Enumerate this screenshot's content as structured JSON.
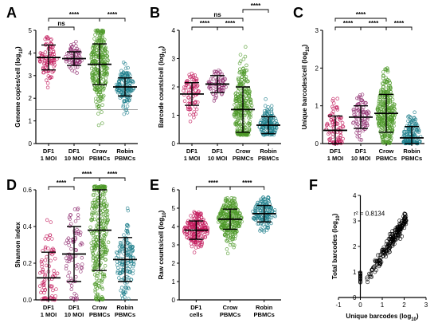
{
  "colors": {
    "pink": "#c2185b",
    "purple": "#8e2a6e",
    "green": "#4f9a2a",
    "teal": "#1f7f8c",
    "black": "#000000"
  },
  "chart_data": [
    {
      "panel": "A",
      "type": "scatter",
      "ylabel": "Genome copies/cell (log10)",
      "ylim": [
        0,
        5
      ],
      "yticks": [
        "0",
        "1",
        "2",
        "3",
        "4",
        "5"
      ],
      "baseline": 1.5,
      "categories": [
        {
          "line1": "DF1",
          "line2": "1 MOI",
          "color": "pink",
          "mean": 3.8,
          "sd": 0.55,
          "n": 90,
          "lo": 1.5,
          "hi": 4.7
        },
        {
          "line1": "DF1",
          "line2": "10 MOI",
          "color": "purple",
          "mean": 3.75,
          "sd": 0.3,
          "n": 70,
          "lo": 2.8,
          "hi": 4.5
        },
        {
          "line1": "Crow",
          "line2": "PBMCs",
          "color": "green",
          "mean": 3.5,
          "sd": 0.9,
          "n": 300,
          "lo": 0.8,
          "hi": 5.0
        },
        {
          "line1": "Robin",
          "line2": "PBMCs",
          "color": "teal",
          "mean": 2.5,
          "sd": 0.4,
          "n": 150,
          "lo": 1.3,
          "hi": 3.6
        }
      ],
      "comparisons": [
        {
          "a": 0,
          "b": 1,
          "label": "ns",
          "level": 0
        },
        {
          "a": 0,
          "b": 2,
          "label": "****",
          "level": 1
        },
        {
          "a": 2,
          "b": 3,
          "label": "****",
          "level": 1
        }
      ]
    },
    {
      "panel": "B",
      "type": "scatter",
      "ylabel": "Barcode counts/cell (log10)",
      "ylim": [
        0,
        4
      ],
      "yticks": [
        "0",
        "1",
        "2",
        "3",
        "4"
      ],
      "categories": [
        {
          "line1": "DF1",
          "line2": "1 MOI",
          "color": "pink",
          "mean": 1.75,
          "sd": 0.4,
          "n": 80,
          "lo": 0.3,
          "hi": 2.5
        },
        {
          "line1": "DF1",
          "line2": "10 MOI",
          "color": "purple",
          "mean": 2.1,
          "sd": 0.3,
          "n": 70,
          "lo": 1.3,
          "hi": 2.6
        },
        {
          "line1": "Crow",
          "line2": "PBMCs",
          "color": "green",
          "mean": 1.2,
          "sd": 0.8,
          "n": 320,
          "lo": 0.3,
          "hi": 3.6
        },
        {
          "line1": "Robin",
          "line2": "PBMCs",
          "color": "teal",
          "mean": 0.65,
          "sd": 0.3,
          "n": 150,
          "lo": 0.3,
          "hi": 1.6
        }
      ],
      "comparisons": [
        {
          "a": 0,
          "b": 1,
          "label": "****",
          "level": 0
        },
        {
          "a": 1,
          "b": 2,
          "label": "****",
          "level": 0
        },
        {
          "a": 0,
          "b": 2,
          "label": "ns",
          "level": 1
        },
        {
          "a": 2,
          "b": 3,
          "label": "****",
          "level": 2
        }
      ]
    },
    {
      "panel": "C",
      "type": "scatter",
      "ylabel": "Unique barcodes/cell (log10)",
      "ylim": [
        0,
        3
      ],
      "yticks": [
        "0",
        "1",
        "2",
        "3"
      ],
      "categories": [
        {
          "line1": "DF1",
          "line2": "1 MOI",
          "color": "pink",
          "mean": 0.35,
          "sd": 0.38,
          "n": 90,
          "lo": 0,
          "hi": 1.2
        },
        {
          "line1": "DF1",
          "line2": "10 MOI",
          "color": "purple",
          "mean": 0.7,
          "sd": 0.3,
          "n": 80,
          "lo": 0,
          "hi": 1.3
        },
        {
          "line1": "Crow",
          "line2": "PBMCs",
          "color": "green",
          "mean": 0.8,
          "sd": 0.5,
          "n": 320,
          "lo": 0,
          "hi": 2.0
        },
        {
          "line1": "Robin",
          "line2": "PBMCs",
          "color": "teal",
          "mean": 0.15,
          "sd": 0.3,
          "n": 150,
          "lo": 0,
          "hi": 1.2
        }
      ],
      "comparisons": [
        {
          "a": 0,
          "b": 1,
          "label": "****",
          "level": 0
        },
        {
          "a": 1,
          "b": 2,
          "label": "****",
          "level": 0
        },
        {
          "a": 0,
          "b": 2,
          "label": "****",
          "level": 1
        },
        {
          "a": 2,
          "b": 3,
          "label": "****",
          "level": 0
        }
      ]
    },
    {
      "panel": "D",
      "type": "scatter",
      "ylabel": "Shannon index",
      "ylim": [
        0,
        0.6
      ],
      "yticks": [
        "0.0",
        "0.2",
        "0.4",
        "0.6"
      ],
      "categories": [
        {
          "line1": "DF1",
          "line2": "1 MOI",
          "color": "pink",
          "mean": 0.12,
          "sd": 0.14,
          "n": 80,
          "lo": 0,
          "hi": 0.45
        },
        {
          "line1": "DF1",
          "line2": "10 MOI",
          "color": "purple",
          "mean": 0.25,
          "sd": 0.15,
          "n": 80,
          "lo": 0,
          "hi": 0.5
        },
        {
          "line1": "Crow",
          "line2": "PBMCs",
          "color": "green",
          "mean": 0.38,
          "sd": 0.22,
          "n": 320,
          "lo": 0,
          "hi": 0.62
        },
        {
          "line1": "Robin",
          "line2": "PBMCs",
          "color": "teal",
          "mean": 0.22,
          "sd": 0.12,
          "n": 150,
          "lo": 0,
          "hi": 0.5
        }
      ],
      "comparisons": [
        {
          "a": 0,
          "b": 1,
          "label": "****",
          "level": 0
        },
        {
          "a": 1,
          "b": 2,
          "label": "****",
          "level": 1
        },
        {
          "a": 2,
          "b": 3,
          "label": "****",
          "level": 1
        }
      ]
    },
    {
      "panel": "E",
      "type": "scatter",
      "ylabel": "Raw counts/cell (log10)",
      "ylim": [
        0,
        6
      ],
      "yticks": [
        "0",
        "1",
        "2",
        "3",
        "4",
        "5",
        "6"
      ],
      "categories": [
        {
          "line1": "DF1",
          "line2": "cells",
          "color": "pink",
          "mean": 3.8,
          "sd": 0.5,
          "n": 200,
          "lo": 0.5,
          "hi": 4.8
        },
        {
          "line1": "Crow",
          "line2": "PBMCs",
          "color": "green",
          "mean": 4.4,
          "sd": 0.55,
          "n": 300,
          "lo": 1.8,
          "hi": 5.6
        },
        {
          "line1": "Robin",
          "line2": "PBMCs",
          "color": "teal",
          "mean": 4.7,
          "sd": 0.45,
          "n": 150,
          "lo": 3.2,
          "hi": 5.6
        }
      ],
      "comparisons": [
        {
          "a": 0,
          "b": 1,
          "label": "****",
          "level": 0
        },
        {
          "a": 1,
          "b": 2,
          "label": "****",
          "level": 0
        }
      ]
    },
    {
      "panel": "F",
      "type": "scatter",
      "xlabel": "Unique barcodes (log10)",
      "ylabel": "Total barcodes (log10)",
      "xlim": [
        -1,
        3
      ],
      "ylim": [
        0,
        4
      ],
      "xticks": [
        "-1",
        "0",
        "1",
        "2",
        "3"
      ],
      "yticks": [
        "0",
        "1",
        "2",
        "3",
        "4"
      ],
      "annotation": "r² = 0.8134",
      "trend": {
        "slope": 1.35,
        "intercept": 0.3
      },
      "n": 230
    }
  ]
}
